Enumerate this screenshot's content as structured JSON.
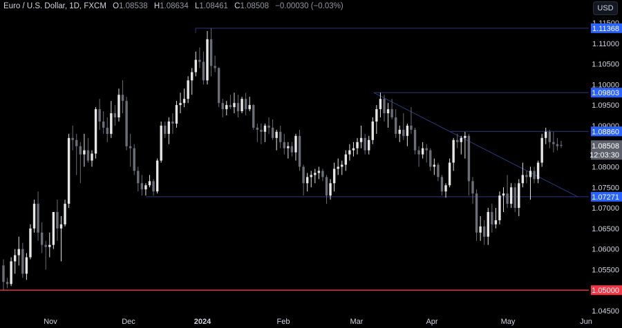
{
  "header": {
    "symbol": "Euro / U.S. Dollar, 1D, FXCM",
    "open_label": "O",
    "open": "1.08538",
    "high_label": "H",
    "high": "1.08634",
    "low_label": "L",
    "low": "1.08461",
    "close_label": "C",
    "close": "1.08508",
    "change": "−0.00030 (−0.03%)"
  },
  "currency_button": "USD",
  "colors": {
    "background": "#000000",
    "candle_up": "#e6e6e6",
    "candle_down": "#6b6e76",
    "level_line": "#2c3a7a",
    "level_tag": "#2962ff",
    "support_red": "#f23645",
    "price_tag": "#5d606b"
  },
  "price_axis": {
    "ticks": [
      "1.11500",
      "1.11000",
      "1.10500",
      "1.10000",
      "1.09500",
      "1.09000",
      "1.08000",
      "1.07500",
      "1.07000",
      "1.06500",
      "1.06000",
      "1.05500",
      "1.04500"
    ]
  },
  "level_tags": [
    {
      "label": "1.11368",
      "color": "blue"
    },
    {
      "label": "1.09803",
      "color": "blue"
    },
    {
      "label": "1.08860",
      "color": "blue"
    },
    {
      "label": "1.07271",
      "color": "blue"
    },
    {
      "label": "1.05000",
      "color": "red"
    }
  ],
  "last_price_tag": {
    "price": "1.08508",
    "countdown": "12:03:30"
  },
  "time_axis": {
    "ticks": [
      "Nov",
      "Dec",
      "2024",
      "Feb",
      "Mar",
      "Apr",
      "May",
      "Jun"
    ]
  },
  "chart_data": {
    "type": "candlestick",
    "title": "Euro / U.S. Dollar, 1D, FXCM",
    "xlabel": "",
    "ylabel": "USD",
    "ylim": [
      1.0425,
      1.1185
    ],
    "x_ticks": [
      "Nov",
      "Dec",
      "2024",
      "Feb",
      "Mar",
      "Apr",
      "May",
      "Jun"
    ],
    "y_ticks": [
      1.045,
      1.055,
      1.06,
      1.065,
      1.07,
      1.075,
      1.08,
      1.09,
      1.095,
      1.1,
      1.105,
      1.11,
      1.115
    ],
    "last": {
      "open": 1.08538,
      "high": 1.08634,
      "low": 1.08461,
      "close": 1.08508,
      "change": -0.0003,
      "change_pct": -0.03
    },
    "horizontal_levels": [
      {
        "price": 1.11368,
        "label": "1.11368"
      },
      {
        "price": 1.09803,
        "label": "1.09803"
      },
      {
        "price": 1.0886,
        "label": "1.08860"
      },
      {
        "price": 1.07271,
        "label": "1.07271"
      },
      {
        "price": 1.05,
        "label": "1.05000",
        "color": "red"
      }
    ],
    "trendline": {
      "from": {
        "approx_date": "Mar 8",
        "price": 1.098
      },
      "to": {
        "approx_date": "late May",
        "price": 1.073
      }
    },
    "ohlc": [
      [
        1.056,
        1.0575,
        1.05,
        1.052
      ],
      [
        1.052,
        1.053,
        1.0505,
        1.0515
      ],
      [
        1.0515,
        1.058,
        1.051,
        1.057
      ],
      [
        1.057,
        1.06,
        1.054,
        1.0585
      ],
      [
        1.0585,
        1.063,
        1.056,
        1.06
      ],
      [
        1.06,
        1.0615,
        1.053,
        1.054
      ],
      [
        1.054,
        1.059,
        1.0525,
        1.058
      ],
      [
        1.058,
        1.066,
        1.0575,
        1.065
      ],
      [
        1.065,
        1.072,
        1.064,
        1.071
      ],
      [
        1.071,
        1.074,
        1.062,
        1.064
      ],
      [
        1.064,
        1.0665,
        1.059,
        1.061
      ],
      [
        1.061,
        1.062,
        1.055,
        1.0605
      ],
      [
        1.0605,
        1.064,
        1.058,
        1.061
      ],
      [
        1.061,
        1.069,
        1.06,
        1.069
      ],
      [
        1.069,
        1.072,
        1.062,
        1.065
      ],
      [
        1.065,
        1.068,
        1.057,
        1.066
      ],
      [
        1.066,
        1.072,
        1.0655,
        1.071
      ],
      [
        1.071,
        1.088,
        1.07,
        1.087
      ],
      [
        1.087,
        1.09,
        1.084,
        1.0865
      ],
      [
        1.0865,
        1.088,
        1.078,
        1.085
      ],
      [
        1.085,
        1.086,
        1.076,
        1.083
      ],
      [
        1.083,
        1.088,
        1.08,
        1.084
      ],
      [
        1.084,
        1.087,
        1.081,
        1.0815
      ],
      [
        1.0815,
        1.084,
        1.08,
        1.0832
      ],
      [
        1.0832,
        1.0945,
        1.082,
        1.094
      ],
      [
        1.094,
        1.0965,
        1.089,
        1.091
      ],
      [
        1.091,
        1.0935,
        1.088,
        1.0895
      ],
      [
        1.0895,
        1.092,
        1.086,
        1.088
      ],
      [
        1.088,
        1.096,
        1.087,
        1.093
      ],
      [
        1.093,
        1.095,
        1.09,
        1.092
      ],
      [
        1.092,
        1.099,
        1.091,
        1.0975
      ],
      [
        1.0975,
        1.101,
        1.093,
        1.096
      ],
      [
        1.096,
        1.097,
        1.084,
        1.085
      ],
      [
        1.085,
        1.088,
        1.08,
        1.0845
      ],
      [
        1.0845,
        1.0855,
        1.078,
        1.079
      ],
      [
        1.079,
        1.08,
        1.074,
        1.076
      ],
      [
        1.076,
        1.078,
        1.073,
        1.0745
      ],
      [
        1.0745,
        1.076,
        1.073,
        1.0755
      ],
      [
        1.0755,
        1.078,
        1.075,
        1.0765
      ],
      [
        1.0765,
        1.077,
        1.073,
        1.074
      ],
      [
        1.074,
        1.082,
        1.0735,
        1.0815
      ],
      [
        1.0815,
        1.091,
        1.081,
        1.09
      ],
      [
        1.09,
        1.091,
        1.087,
        1.088
      ],
      [
        1.088,
        1.092,
        1.0855,
        1.091
      ],
      [
        1.091,
        1.093,
        1.088,
        1.0905
      ],
      [
        1.0905,
        1.096,
        1.0895,
        1.095
      ],
      [
        1.095,
        1.098,
        1.093,
        1.0955
      ],
      [
        1.0955,
        1.099,
        1.0945,
        1.0965
      ],
      [
        1.0965,
        1.102,
        1.0955,
        1.101
      ],
      [
        1.101,
        1.104,
        1.0975,
        1.103
      ],
      [
        1.103,
        1.108,
        1.102,
        1.106
      ],
      [
        1.106,
        1.109,
        1.104,
        1.1055
      ],
      [
        1.1055,
        1.108,
        1.1,
        1.101
      ],
      [
        1.101,
        1.113,
        1.1,
        1.111
      ],
      [
        1.111,
        1.1137,
        1.102,
        1.1045
      ],
      [
        1.1045,
        1.107,
        1.103,
        1.104
      ],
      [
        1.104,
        1.1042,
        1.0945,
        1.0955
      ],
      [
        1.0955,
        1.0965,
        1.092,
        1.094
      ],
      [
        1.094,
        1.096,
        1.0925,
        1.095
      ],
      [
        1.095,
        1.0975,
        1.094,
        1.0945
      ],
      [
        1.0945,
        1.098,
        1.093,
        1.0955
      ],
      [
        1.0955,
        1.0975,
        1.092,
        1.0935
      ],
      [
        1.0935,
        1.097,
        1.093,
        1.0965
      ],
      [
        1.0965,
        1.098,
        1.0925,
        1.094
      ],
      [
        1.094,
        1.097,
        1.0935,
        1.095
      ],
      [
        1.095,
        1.0952,
        1.089,
        1.0895
      ],
      [
        1.0895,
        1.0905,
        1.086,
        1.089
      ],
      [
        1.089,
        1.0905,
        1.0855,
        1.0885
      ],
      [
        1.0885,
        1.0905,
        1.086,
        1.09
      ],
      [
        1.09,
        1.092,
        1.088,
        1.0895
      ],
      [
        1.0895,
        1.0915,
        1.0865,
        1.087
      ],
      [
        1.087,
        1.089,
        1.084,
        1.0885
      ],
      [
        1.0885,
        1.09,
        1.0845,
        1.086
      ],
      [
        1.086,
        1.088,
        1.083,
        1.0845
      ],
      [
        1.0845,
        1.086,
        1.082,
        1.085
      ],
      [
        1.085,
        1.086,
        1.0825,
        1.0835
      ],
      [
        1.0835,
        1.088,
        1.0815,
        1.0875
      ],
      [
        1.0875,
        1.089,
        1.079,
        1.08
      ],
      [
        1.08,
        1.0805,
        1.073,
        1.076
      ],
      [
        1.076,
        1.0785,
        1.074,
        1.0775
      ],
      [
        1.0775,
        1.079,
        1.075,
        1.078
      ],
      [
        1.078,
        1.0795,
        1.076,
        1.0785
      ],
      [
        1.0785,
        1.08,
        1.077,
        1.079
      ],
      [
        1.079,
        1.0795,
        1.0765,
        1.0775
      ],
      [
        1.0775,
        1.078,
        1.071,
        1.073
      ],
      [
        1.073,
        1.077,
        1.072,
        1.076
      ],
      [
        1.076,
        1.081,
        1.074,
        1.0795
      ],
      [
        1.0795,
        1.082,
        1.078,
        1.08
      ],
      [
        1.08,
        1.0815,
        1.078,
        1.0805
      ],
      [
        1.0805,
        1.084,
        1.079,
        1.083
      ],
      [
        1.083,
        1.0855,
        1.0815,
        1.084
      ],
      [
        1.084,
        1.086,
        1.0825,
        1.0845
      ],
      [
        1.0845,
        1.087,
        1.083,
        1.086
      ],
      [
        1.086,
        1.09,
        1.0845,
        1.087
      ],
      [
        1.087,
        1.088,
        1.083,
        1.084
      ],
      [
        1.084,
        1.0875,
        1.083,
        1.0865
      ],
      [
        1.0865,
        1.092,
        1.0855,
        1.091
      ],
      [
        1.091,
        1.095,
        1.088,
        1.094
      ],
      [
        1.094,
        1.098,
        1.092,
        1.0965
      ],
      [
        1.0965,
        1.0975,
        1.091,
        1.093
      ],
      [
        1.093,
        1.0955,
        1.0895,
        1.094
      ],
      [
        1.094,
        1.0965,
        1.0915,
        1.092
      ],
      [
        1.092,
        1.094,
        1.087,
        1.088
      ],
      [
        1.088,
        1.09,
        1.086,
        1.089
      ],
      [
        1.089,
        1.093,
        1.0865,
        1.0875
      ],
      [
        1.0875,
        1.0905,
        1.085,
        1.09
      ],
      [
        1.09,
        1.0945,
        1.088,
        1.089
      ],
      [
        1.089,
        1.0895,
        1.083,
        1.084
      ],
      [
        1.084,
        1.085,
        1.08,
        1.083
      ],
      [
        1.083,
        1.086,
        1.082,
        1.0845
      ],
      [
        1.0845,
        1.0855,
        1.081,
        1.084
      ],
      [
        1.084,
        1.0845,
        1.079,
        1.08
      ],
      [
        1.08,
        1.082,
        1.078,
        1.0805
      ],
      [
        1.0805,
        1.081,
        1.0765,
        1.0775
      ],
      [
        1.0775,
        1.078,
        1.073,
        1.074
      ],
      [
        1.074,
        1.076,
        1.0725,
        1.0755
      ],
      [
        1.0755,
        1.082,
        1.075,
        1.081
      ],
      [
        1.081,
        1.087,
        1.079,
        1.0865
      ],
      [
        1.0865,
        1.088,
        1.0845,
        1.086
      ],
      [
        1.086,
        1.0875,
        1.083,
        1.087
      ],
      [
        1.087,
        1.0885,
        1.082,
        1.0875
      ],
      [
        1.0875,
        1.088,
        1.073,
        1.0765
      ],
      [
        1.0765,
        1.0775,
        1.071,
        1.0735
      ],
      [
        1.0735,
        1.0745,
        1.062,
        1.064
      ],
      [
        1.064,
        1.068,
        1.062,
        1.0655
      ],
      [
        1.0655,
        1.067,
        1.061,
        1.063
      ],
      [
        1.063,
        1.07,
        1.061,
        1.069
      ],
      [
        1.069,
        1.071,
        1.064,
        1.066
      ],
      [
        1.066,
        1.07,
        1.065,
        1.067
      ],
      [
        1.067,
        1.074,
        1.066,
        1.073
      ],
      [
        1.073,
        1.075,
        1.069,
        1.0735
      ],
      [
        1.0735,
        1.078,
        1.07,
        1.071
      ],
      [
        1.071,
        1.076,
        1.07,
        1.075
      ],
      [
        1.075,
        1.076,
        1.069,
        1.07
      ],
      [
        1.07,
        1.077,
        1.068,
        1.076
      ],
      [
        1.076,
        1.081,
        1.075,
        1.078
      ],
      [
        1.078,
        1.079,
        1.076,
        1.0775
      ],
      [
        1.0775,
        1.08,
        1.072,
        1.079
      ],
      [
        1.079,
        1.08,
        1.076,
        1.077
      ],
      [
        1.077,
        1.0815,
        1.076,
        1.081
      ],
      [
        1.081,
        1.088,
        1.08,
        1.087
      ],
      [
        1.087,
        1.0895,
        1.0855,
        1.0885
      ],
      [
        1.0885,
        1.089,
        1.0845,
        1.086
      ],
      [
        1.086,
        1.0885,
        1.0835,
        1.0855
      ],
      [
        1.0855,
        1.087,
        1.084,
        1.085
      ],
      [
        1.0853,
        1.0863,
        1.0846,
        1.0851
      ]
    ]
  }
}
